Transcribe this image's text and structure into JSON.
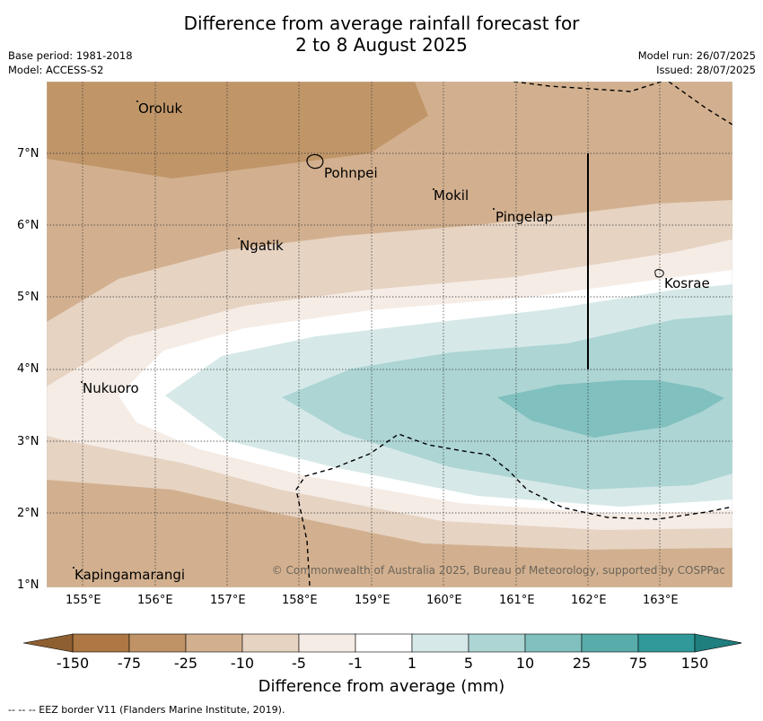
{
  "title_line1": "Difference from average rainfall forecast for",
  "title_line2": "2 to 8 August 2025",
  "meta_left": {
    "base_period": "Base period: 1981-2018",
    "model": "Model: ACCESS-S2"
  },
  "meta_right": {
    "model_run": "Model run: 26/07/2025",
    "issued": "Issued: 28/07/2025"
  },
  "lat_ticks": [
    "7°N",
    "6°N",
    "5°N",
    "4°N",
    "3°N",
    "2°N",
    "1°N"
  ],
  "lon_ticks": [
    "155°E",
    "156°E",
    "157°E",
    "158°E",
    "159°E",
    "160°E",
    "161°E",
    "162°E",
    "163°E"
  ],
  "places": {
    "oroluk": "Oroluk",
    "pohnpei": "Pohnpei",
    "mokil": "Mokil",
    "pingelap": "Pingelap",
    "ngatik": "Ngatik",
    "kosrae": "Kosrae",
    "nukuoro": "Nukuoro",
    "kapingamarangi": "Kapingamarangi"
  },
  "copyright": "© Commonwealth of Australia 2025, Bureau of Meteorology, supported by COSPPac",
  "colorbar": {
    "labels": [
      "-150",
      "-75",
      "-25",
      "-10",
      "-5",
      "-1",
      "1",
      "5",
      "10",
      "25",
      "75",
      "150"
    ],
    "colors": [
      "#ad7843",
      "#c09366",
      "#d2b08f",
      "#e6d3c2",
      "#f5ece6",
      "#ffffff",
      "#d6e9e8",
      "#acd5d4",
      "#80c0bf",
      "#58adab",
      "#31999a"
    ],
    "title": "Difference from average (mm)"
  },
  "footer": "--  --  -- EEZ border V11 (Flanders Marine Institute, 2019)."
}
